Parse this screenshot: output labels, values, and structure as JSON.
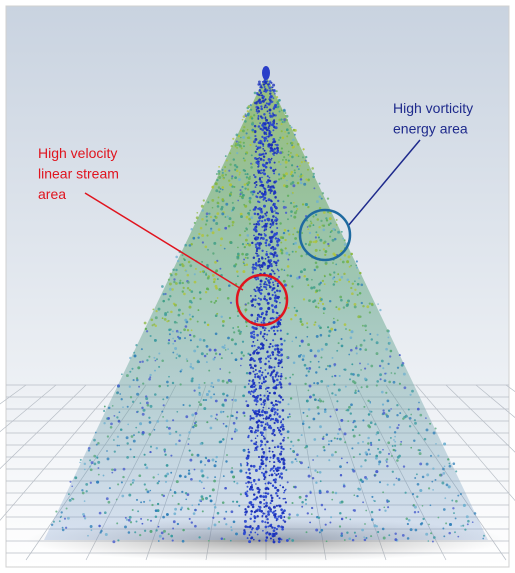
{
  "annotations": [
    {
      "lines": [
        "High velocity",
        "linear stream",
        "area"
      ],
      "color": "#e0141e"
    },
    {
      "lines": [
        "High vorticity",
        "energy area"
      ],
      "color": "#1e2a8c"
    }
  ]
}
